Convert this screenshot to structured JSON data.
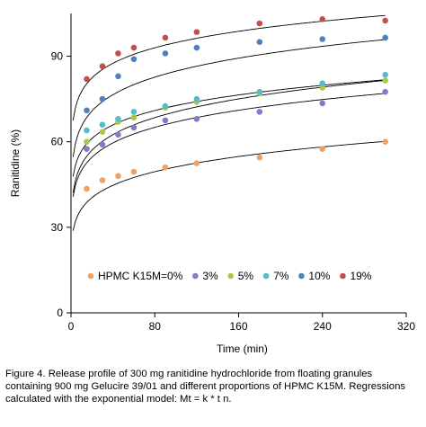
{
  "chart_data": {
    "type": "scatter",
    "title": "",
    "xlabel": "Time (min)",
    "ylabel": "Ranitidine (%)",
    "xlim": [
      0,
      320
    ],
    "ylim": [
      0,
      105
    ],
    "xticks": [
      0,
      80,
      160,
      240,
      320
    ],
    "yticks": [
      0,
      30,
      60,
      90
    ],
    "grid": false,
    "legend_position": "inside-bottom",
    "model": "power",
    "x": [
      15,
      30,
      45,
      60,
      90,
      120,
      180,
      240,
      300
    ],
    "series": [
      {
        "name": "HPMC K15M=0%",
        "color": "#f0a060",
        "values": [
          43.5,
          46.5,
          48,
          49.5,
          51,
          52.5,
          54.5,
          57.5,
          60
        ],
        "fit": {
          "k": 26.0,
          "n": 0.147
        }
      },
      {
        "name": "3%",
        "color": "#8878c8",
        "values": [
          57.5,
          59,
          62.5,
          65,
          67.5,
          68,
          70.5,
          73.5,
          77.5
        ],
        "fit": {
          "k": 37.3,
          "n": 0.127
        }
      },
      {
        "name": "5%",
        "color": "#a8c848",
        "values": [
          60,
          63.5,
          67,
          68.5,
          72,
          74,
          77,
          79,
          81.5
        ],
        "fit": {
          "k": 38.4,
          "n": 0.132
        }
      },
      {
        "name": "7%",
        "color": "#58b8d0",
        "values": [
          64,
          66,
          68,
          70.5,
          72.5,
          75,
          77.5,
          80.5,
          83.5
        ],
        "fit": {
          "k": 44.4,
          "n": 0.107
        }
      },
      {
        "name": "10%",
        "color": "#4f81bd",
        "values": [
          71,
          75,
          83,
          89,
          91,
          93,
          95,
          96,
          96.5
        ],
        "fit": {
          "k": 50.6,
          "n": 0.112
        }
      },
      {
        "name": "19%",
        "color": "#c0504d",
        "values": [
          82,
          86.5,
          91,
          93,
          96.5,
          98.5,
          101.5,
          103,
          102.5
        ],
        "fit": {
          "k": 63.5,
          "n": 0.087
        }
      }
    ]
  },
  "caption": "Figure 4. Release profile of 300 mg ranitidine hydrochloride from floating granules containing 900 mg Gelucire 39/01 and different proportions of HPMC K15M. Regressions calculated with the exponential model: Mt = k * t n."
}
